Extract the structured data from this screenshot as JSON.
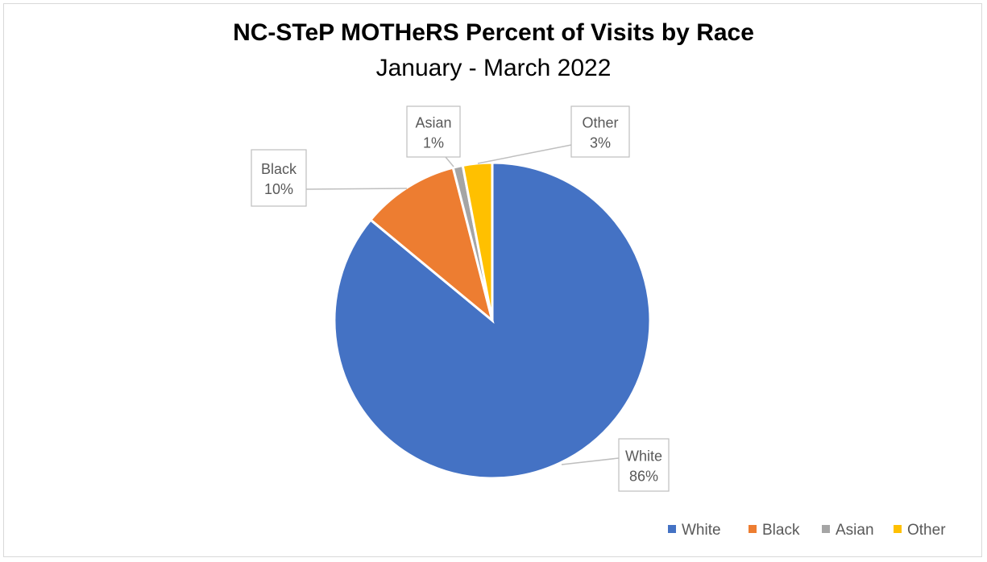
{
  "chart_data": {
    "type": "pie",
    "title": "NC-STeP MOTHeRS Percent of Visits by Race",
    "subtitle": "January - March 2022",
    "categories": [
      "White",
      "Black",
      "Asian",
      "Other"
    ],
    "values": [
      86,
      10,
      1,
      3
    ],
    "data_labels": [
      "86%",
      "10%",
      "1%",
      "3%"
    ],
    "colors": [
      "#4472c4",
      "#ed7d31",
      "#a5a5a5",
      "#ffc000"
    ],
    "legend_position": "bottom-right"
  }
}
